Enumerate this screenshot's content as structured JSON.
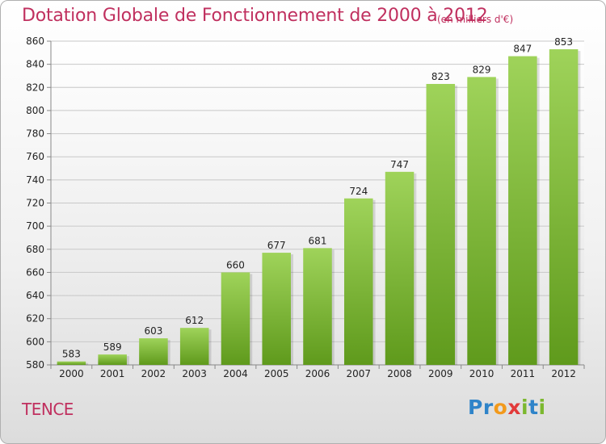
{
  "header": {
    "title": "Dotation Globale de Fonctionnement de 2000 à 2012",
    "unit": "(en milliers d'€)"
  },
  "footer": {
    "commune": "TENCE",
    "logo_letters": [
      "P",
      "r",
      "o",
      "x",
      "i",
      "t",
      "i"
    ],
    "logo_colors": [
      "#2f84c9",
      "#2f84c9",
      "#f29a1c",
      "#e23a3a",
      "#7cb82f",
      "#2f84c9",
      "#7cb82f"
    ]
  },
  "chart_data": {
    "type": "bar",
    "title": "Dotation Globale de Fonctionnement de 2000 à 2012",
    "subtitle": "(en milliers d'€)",
    "categories": [
      "2000",
      "2001",
      "2002",
      "2003",
      "2004",
      "2005",
      "2006",
      "2007",
      "2008",
      "2009",
      "2010",
      "2011",
      "2012"
    ],
    "values": [
      583,
      589,
      603,
      612,
      660,
      677,
      681,
      724,
      747,
      823,
      829,
      847,
      853
    ],
    "ylim": [
      580,
      860
    ],
    "yticks": [
      580,
      600,
      620,
      640,
      660,
      680,
      700,
      720,
      740,
      760,
      780,
      800,
      820,
      840,
      860
    ],
    "grid": true,
    "bar_color_top": "#9fd35a",
    "bar_color_bottom": "#5f9a1c"
  }
}
